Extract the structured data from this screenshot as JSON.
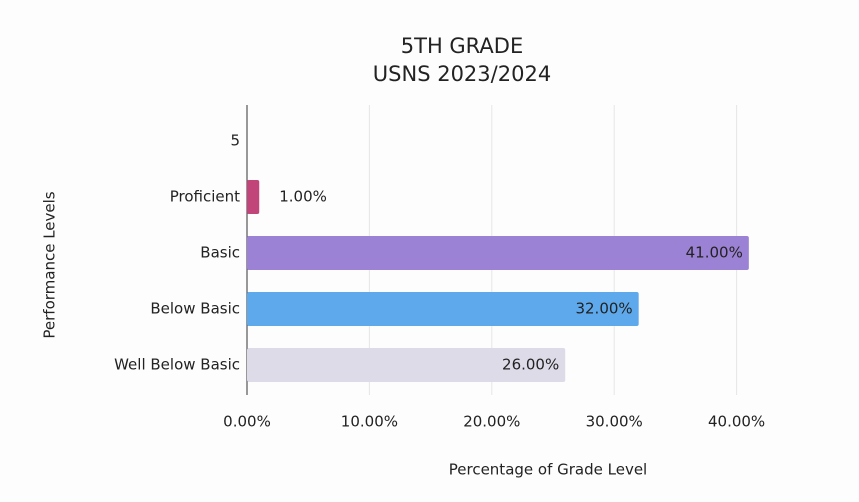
{
  "chart_data": {
    "type": "hbar",
    "title": "5TH GRADE",
    "subtitle": "USNS 2023/2024",
    "x_label": "Percentage of Grade Level",
    "y_label": "Performance Levels",
    "categories": [
      "5",
      "Proficient",
      "Basic",
      "Below Basic",
      "Well Below Basic"
    ],
    "values": [
      null,
      1,
      41,
      32,
      26
    ],
    "value_labels": [
      null,
      "1.00%",
      "41.00%",
      "32.00%",
      "26.00%"
    ],
    "colors": [
      null,
      "#c2457a",
      "#9c82d4",
      "#5ea9ec",
      "#dedbe8"
    ],
    "xlim": [
      0,
      50
    ],
    "xticks": [
      {
        "value": 0,
        "label": "0.00%"
      },
      {
        "value": 10,
        "label": "10.00%"
      },
      {
        "value": 20,
        "label": "20.00%"
      },
      {
        "value": 30,
        "label": "30.00%"
      },
      {
        "value": 40,
        "label": "40.00%"
      }
    ],
    "grid": true
  }
}
